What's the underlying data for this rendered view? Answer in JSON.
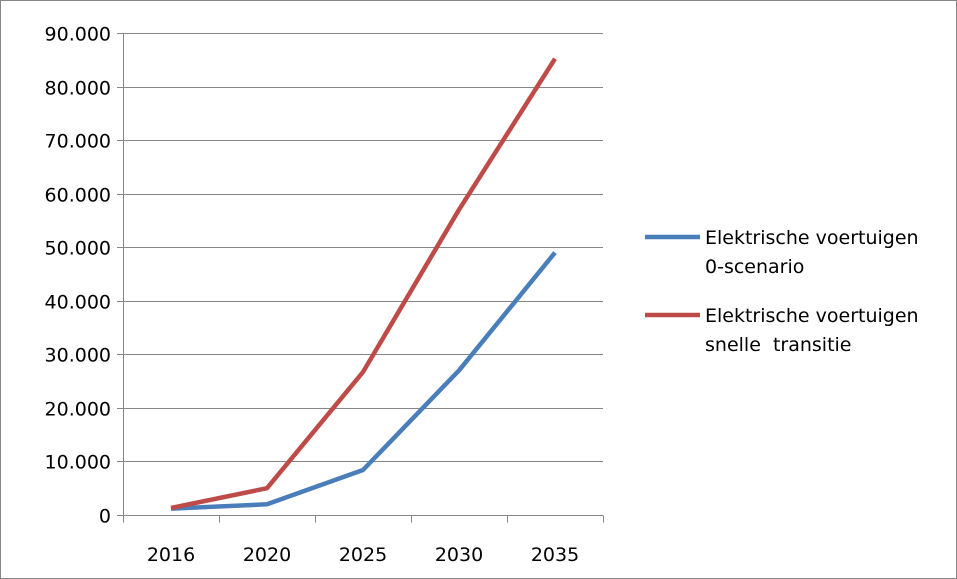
{
  "chart_data": {
    "type": "line",
    "title": "",
    "xlabel": "",
    "ylabel": "",
    "categories": [
      "2016",
      "2020",
      "2025",
      "2030",
      "2035"
    ],
    "ylim": [
      0,
      90000
    ],
    "yticks": [
      0,
      10000,
      20000,
      30000,
      40000,
      50000,
      60000,
      70000,
      80000,
      90000
    ],
    "ytick_labels": [
      "0",
      "10.000",
      "20.000",
      "30.000",
      "40.000",
      "50.000",
      "60.000",
      "70.000",
      "80.000",
      "90.000"
    ],
    "grid": true,
    "legend_position": "right",
    "series": [
      {
        "name_lines": [
          "Elektrische voertuigen",
          "0-scenario"
        ],
        "color": "#4a7ebb",
        "values": [
          1200,
          2000,
          8400,
          27000,
          49000
        ]
      },
      {
        "name_lines": [
          "Elektrische voertuigen",
          "snelle  transitie"
        ],
        "color": "#be4b48",
        "values": [
          1300,
          5000,
          26700,
          57000,
          85200
        ]
      }
    ]
  }
}
